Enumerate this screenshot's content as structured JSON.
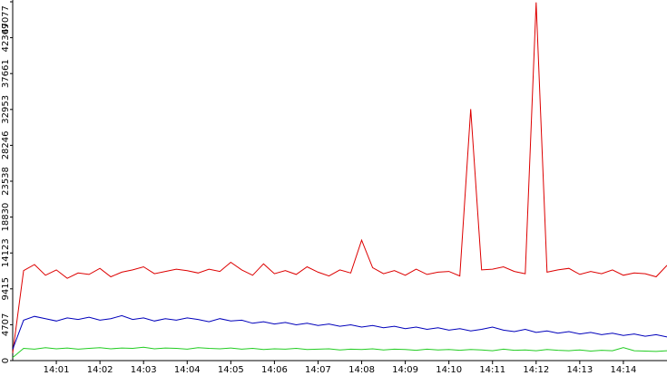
{
  "chart_data": {
    "type": "line",
    "x": [
      0,
      0.25,
      0.5,
      0.75,
      1,
      1.25,
      1.5,
      1.75,
      2,
      2.25,
      2.5,
      2.75,
      3,
      3.25,
      3.5,
      3.75,
      4,
      4.25,
      4.5,
      4.75,
      5,
      5.25,
      5.5,
      5.75,
      6,
      6.25,
      6.5,
      6.75,
      7,
      7.25,
      7.5,
      7.75,
      8,
      8.25,
      8.5,
      8.75,
      9,
      9.25,
      9.5,
      9.75,
      10,
      10.25,
      10.5,
      10.75,
      11,
      11.25,
      11.5,
      11.75,
      12,
      12.25,
      12.5,
      12.75,
      13,
      13.25,
      13.5,
      13.75,
      14,
      14.25,
      14.5,
      14.75,
      15
    ],
    "xlim": [
      0,
      15
    ],
    "xticks": [
      {
        "value": 1,
        "label": "14:01"
      },
      {
        "value": 2,
        "label": "14:02"
      },
      {
        "value": 3,
        "label": "14:03"
      },
      {
        "value": 4,
        "label": "14:04"
      },
      {
        "value": 5,
        "label": "14:05"
      },
      {
        "value": 6,
        "label": "14:06"
      },
      {
        "value": 7,
        "label": "14:07"
      },
      {
        "value": 8,
        "label": "14:08"
      },
      {
        "value": 9,
        "label": "14:09"
      },
      {
        "value": 10,
        "label": "14:10"
      },
      {
        "value": 11,
        "label": "14:11"
      },
      {
        "value": 12,
        "label": "14:12"
      },
      {
        "value": 13,
        "label": "14:13"
      },
      {
        "value": 14,
        "label": "14:14"
      }
    ],
    "ylim": [
      0,
      47077
    ],
    "yticks": [
      0,
      4707,
      9415,
      14123,
      18830,
      23538,
      28246,
      32953,
      37661,
      42369,
      47077
    ],
    "series": [
      {
        "color": "#dd0000",
        "values": [
          1000,
          11800,
          12600,
          11200,
          11900,
          10800,
          11500,
          11300,
          12100,
          11000,
          11600,
          11900,
          12300,
          11400,
          11700,
          12000,
          11800,
          11500,
          12000,
          11700,
          12900,
          11900,
          11200,
          12700,
          11400,
          11800,
          11300,
          12300,
          11600,
          11100,
          11900,
          11500,
          15800,
          12200,
          11400,
          11800,
          11200,
          12000,
          11300,
          11600,
          11700,
          11100,
          33000,
          11900,
          12000,
          12300,
          11700,
          11400,
          47000,
          11600,
          11900,
          12100,
          11300,
          11700,
          11400,
          11900,
          11200,
          11500,
          11400,
          11000,
          12500
        ]
      },
      {
        "color": "#0000bb",
        "values": [
          1500,
          5300,
          5800,
          5500,
          5200,
          5600,
          5400,
          5700,
          5300,
          5500,
          5900,
          5400,
          5600,
          5200,
          5500,
          5300,
          5600,
          5400,
          5100,
          5500,
          5200,
          5300,
          4900,
          5100,
          4800,
          5000,
          4700,
          4900,
          4600,
          4800,
          4500,
          4700,
          4400,
          4600,
          4300,
          4500,
          4200,
          4400,
          4100,
          4300,
          4000,
          4200,
          3900,
          4100,
          4400,
          4000,
          3800,
          4100,
          3700,
          3900,
          3600,
          3800,
          3500,
          3700,
          3400,
          3600,
          3300,
          3500,
          3200,
          3400,
          3100
        ]
      },
      {
        "color": "#22cc22",
        "values": [
          400,
          1600,
          1500,
          1700,
          1550,
          1650,
          1500,
          1600,
          1700,
          1550,
          1650,
          1600,
          1750,
          1550,
          1650,
          1600,
          1500,
          1700,
          1600,
          1550,
          1650,
          1500,
          1600,
          1450,
          1550,
          1500,
          1600,
          1450,
          1500,
          1550,
          1400,
          1500,
          1450,
          1550,
          1400,
          1500,
          1450,
          1350,
          1500,
          1400,
          1450,
          1350,
          1450,
          1400,
          1300,
          1500,
          1350,
          1400,
          1300,
          1450,
          1350,
          1300,
          1400,
          1250,
          1350,
          1300,
          1700,
          1300,
          1250,
          1200,
          1300
        ]
      }
    ]
  }
}
